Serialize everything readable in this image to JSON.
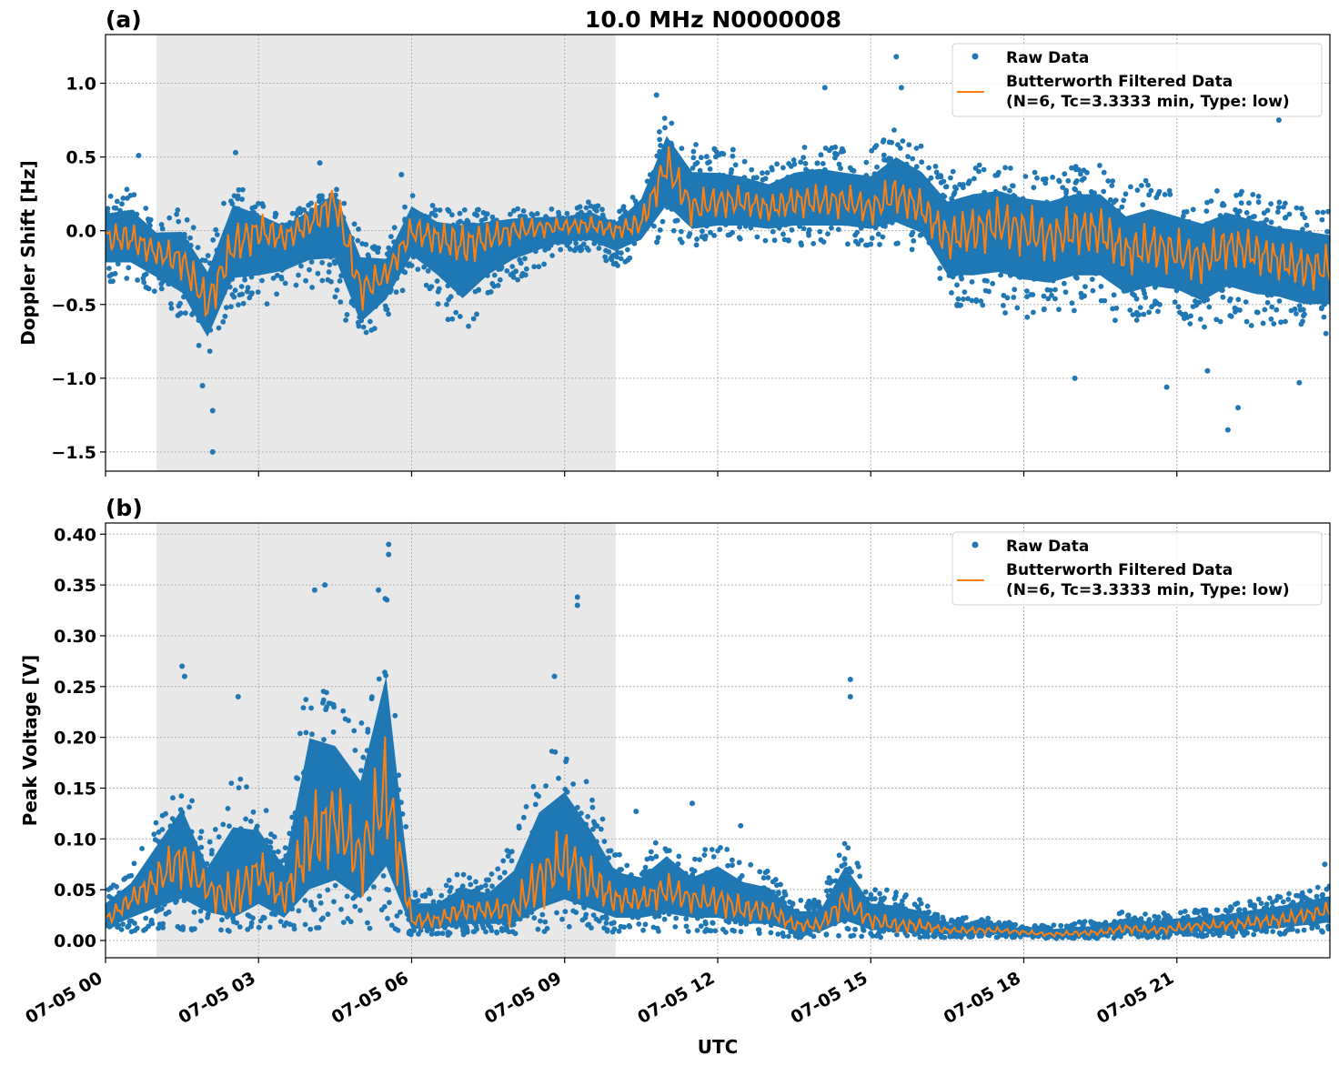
{
  "chart_data": [
    {
      "type": "scatter",
      "panel_label": "(a)",
      "title": "10.0 MHz N0000008",
      "xlabel": "",
      "ylabel": "Doppler Shift [Hz]",
      "x_unit": "hours UTC on 07-05",
      "xlim": [
        0,
        24
      ],
      "ylim": [
        -1.63,
        1.33
      ],
      "yticks": [
        1.0,
        0.5,
        0.0,
        -0.5,
        -1.0,
        -1.5
      ],
      "ytick_labels": [
        "1.0",
        "0.5",
        "0.0",
        "−0.5",
        "−1.0",
        "−1.5"
      ],
      "grid": true,
      "legend_placement": "top-right",
      "shaded_interval": [
        1,
        10
      ],
      "shade_color": "#e8e8e8",
      "legend": [
        "Raw Data",
        "Butterworth Filtered Data",
        "(N=6, Tc=3.3333 min, Type: low)"
      ],
      "x": [
        0,
        0.5,
        1,
        1.5,
        2,
        2.5,
        3,
        3.5,
        4,
        4.5,
        5,
        5.5,
        6,
        6.5,
        7,
        7.5,
        8,
        8.5,
        9,
        9.5,
        10,
        10.5,
        11,
        11.5,
        12,
        12.5,
        13,
        13.5,
        14,
        14.5,
        15,
        15.5,
        16,
        16.5,
        17,
        17.5,
        18,
        18.5,
        19,
        19.5,
        20,
        20.5,
        21,
        21.5,
        22,
        22.5,
        23,
        23.5,
        24
      ],
      "series": [
        {
          "name": "Raw Data",
          "kind": "scatter-range",
          "color": "#1f77b4",
          "ymin": [
            -0.35,
            -0.35,
            -0.45,
            -0.6,
            -0.9,
            -0.5,
            -0.55,
            -0.45,
            -0.4,
            -0.5,
            -0.8,
            -0.6,
            -0.3,
            -0.5,
            -0.75,
            -0.5,
            -0.35,
            -0.25,
            -0.15,
            -0.15,
            -0.25,
            -0.15,
            -0.05,
            -0.1,
            -0.1,
            -0.1,
            -0.1,
            -0.1,
            -0.1,
            -0.1,
            -0.1,
            -0.1,
            -0.15,
            -0.5,
            -0.55,
            -0.55,
            -0.6,
            -0.6,
            -0.55,
            -0.55,
            -0.65,
            -0.6,
            -0.6,
            -0.7,
            -0.6,
            -0.65,
            -0.65,
            -0.7,
            -0.7
          ],
          "ymax": [
            0.25,
            0.3,
            0.1,
            0.15,
            -0.1,
            0.4,
            0.2,
            0.1,
            0.2,
            0.3,
            0.0,
            -0.1,
            0.3,
            0.15,
            0.15,
            0.15,
            0.15,
            0.15,
            0.15,
            0.2,
            0.1,
            0.35,
            0.8,
            0.6,
            0.55,
            0.5,
            0.45,
            0.55,
            0.6,
            0.55,
            0.55,
            0.7,
            0.6,
            0.4,
            0.45,
            0.45,
            0.4,
            0.4,
            0.45,
            0.45,
            0.3,
            0.35,
            0.3,
            0.25,
            0.3,
            0.25,
            0.2,
            0.2,
            0.15
          ],
          "outliers": [
            [
              0.65,
              0.51
            ],
            [
              1.9,
              -1.05
            ],
            [
              2.1,
              -1.5
            ],
            [
              2.1,
              -1.22
            ],
            [
              2.55,
              0.53
            ],
            [
              4.2,
              0.46
            ],
            [
              5.8,
              0.38
            ],
            [
              10.8,
              0.92
            ],
            [
              12.3,
              0.55
            ],
            [
              14.1,
              0.97
            ],
            [
              15.5,
              1.18
            ],
            [
              15.6,
              0.97
            ],
            [
              19.0,
              -1.0
            ],
            [
              20.8,
              -1.06
            ],
            [
              21.6,
              -0.95
            ],
            [
              22.0,
              -1.35
            ],
            [
              22.2,
              -1.2
            ],
            [
              23.4,
              -1.03
            ],
            [
              23.0,
              0.75
            ]
          ]
        },
        {
          "name": "Butterworth Filtered Data",
          "kind": "line",
          "color": "#ff7f0e",
          "y": [
            -0.05,
            -0.05,
            -0.15,
            -0.2,
            -0.5,
            -0.1,
            0.0,
            -0.05,
            0.05,
            0.2,
            -0.4,
            -0.3,
            0.0,
            -0.05,
            -0.1,
            -0.05,
            0.0,
            0.02,
            0.03,
            0.04,
            0.0,
            0.05,
            0.45,
            0.15,
            0.2,
            0.2,
            0.15,
            0.2,
            0.2,
            0.2,
            0.15,
            0.25,
            0.15,
            -0.05,
            0.0,
            0.05,
            0.0,
            -0.05,
            0.0,
            0.0,
            -0.15,
            -0.1,
            -0.15,
            -0.2,
            -0.1,
            -0.15,
            -0.2,
            -0.25,
            -0.25
          ]
        }
      ]
    },
    {
      "type": "scatter",
      "panel_label": "(b)",
      "title": "",
      "xlabel": "UTC",
      "ylabel": "Peak Voltage [V]",
      "x_unit": "hours UTC on 07-05",
      "xlim": [
        0,
        24
      ],
      "ylim": [
        -0.017,
        0.411
      ],
      "yticks": [
        0.4,
        0.35,
        0.3,
        0.25,
        0.2,
        0.15,
        0.1,
        0.05,
        0.0
      ],
      "ytick_labels": [
        "0.40",
        "0.35",
        "0.30",
        "0.25",
        "0.20",
        "0.15",
        "0.10",
        "0.05",
        "0.00"
      ],
      "xticks": [
        0,
        3,
        6,
        9,
        12,
        15,
        18,
        21
      ],
      "xtick_labels": [
        "07-05 00",
        "07-05 03",
        "07-05 06",
        "07-05 09",
        "07-05 12",
        "07-05 15",
        "07-05 18",
        "07-05 21"
      ],
      "grid": true,
      "legend_placement": "top-right",
      "shaded_interval": [
        1,
        10
      ],
      "shade_color": "#e8e8e8",
      "legend": [
        "Raw Data",
        "Butterworth Filtered Data",
        "(N=6, Tc=3.3333 min, Type: low)"
      ],
      "x": [
        0,
        0.5,
        1,
        1.5,
        2,
        2.5,
        3,
        3.5,
        4,
        4.5,
        5,
        5.5,
        6,
        6.5,
        7,
        7.5,
        8,
        8.5,
        9,
        9.5,
        10,
        10.5,
        11,
        11.5,
        12,
        12.5,
        13,
        13.5,
        14,
        14.5,
        15,
        15.5,
        16,
        16.5,
        17,
        17.5,
        18,
        18.5,
        19,
        19.5,
        20,
        20.5,
        21,
        21.5,
        22,
        22.5,
        23,
        23.5,
        24
      ],
      "series": [
        {
          "name": "Raw Data",
          "kind": "scatter-range",
          "color": "#1f77b4",
          "ymin": [
            0.005,
            0.008,
            0.01,
            0.01,
            0.01,
            0.008,
            0.008,
            0.008,
            0.01,
            0.01,
            0.01,
            0.01,
            0.005,
            0.005,
            0.005,
            0.005,
            0.006,
            0.008,
            0.008,
            0.008,
            0.008,
            0.008,
            0.008,
            0.008,
            0.008,
            0.006,
            0.005,
            0.003,
            0.003,
            0.003,
            0.003,
            0.003,
            0.003,
            0.003,
            0.003,
            0.003,
            0.002,
            0.002,
            0.002,
            0.002,
            0.003,
            0.003,
            0.003,
            0.004,
            0.004,
            0.005,
            0.006,
            0.007,
            0.008
          ],
          "ymax": [
            0.05,
            0.07,
            0.12,
            0.17,
            0.09,
            0.17,
            0.14,
            0.1,
            0.28,
            0.25,
            0.22,
            0.35,
            0.05,
            0.05,
            0.07,
            0.06,
            0.1,
            0.18,
            0.2,
            0.15,
            0.09,
            0.08,
            0.11,
            0.08,
            0.1,
            0.08,
            0.07,
            0.04,
            0.04,
            0.1,
            0.05,
            0.05,
            0.04,
            0.02,
            0.025,
            0.02,
            0.015,
            0.015,
            0.018,
            0.02,
            0.03,
            0.025,
            0.03,
            0.03,
            0.035,
            0.04,
            0.045,
            0.05,
            0.055
          ],
          "outliers": [
            [
              1.5,
              0.27
            ],
            [
              1.55,
              0.26
            ],
            [
              2.6,
              0.24
            ],
            [
              4.1,
              0.345
            ],
            [
              4.3,
              0.35
            ],
            [
              5.35,
              0.345
            ],
            [
              5.55,
              0.39
            ],
            [
              5.55,
              0.38
            ],
            [
              9.25,
              0.338
            ],
            [
              9.25,
              0.33
            ],
            [
              8.8,
              0.26
            ],
            [
              14.6,
              0.257
            ],
            [
              14.6,
              0.24
            ],
            [
              10.4,
              0.127
            ],
            [
              12.45,
              0.113
            ],
            [
              11.5,
              0.135
            ],
            [
              23.9,
              0.075
            ]
          ]
        },
        {
          "name": "Butterworth Filtered Data",
          "kind": "line",
          "color": "#ff7f0e",
          "y": [
            0.02,
            0.04,
            0.06,
            0.08,
            0.05,
            0.04,
            0.07,
            0.04,
            0.1,
            0.12,
            0.08,
            0.15,
            0.02,
            0.02,
            0.03,
            0.03,
            0.03,
            0.06,
            0.08,
            0.06,
            0.04,
            0.04,
            0.05,
            0.04,
            0.04,
            0.03,
            0.03,
            0.015,
            0.015,
            0.04,
            0.02,
            0.015,
            0.015,
            0.01,
            0.01,
            0.01,
            0.008,
            0.006,
            0.007,
            0.008,
            0.012,
            0.01,
            0.012,
            0.015,
            0.015,
            0.018,
            0.02,
            0.025,
            0.03
          ]
        }
      ]
    }
  ]
}
